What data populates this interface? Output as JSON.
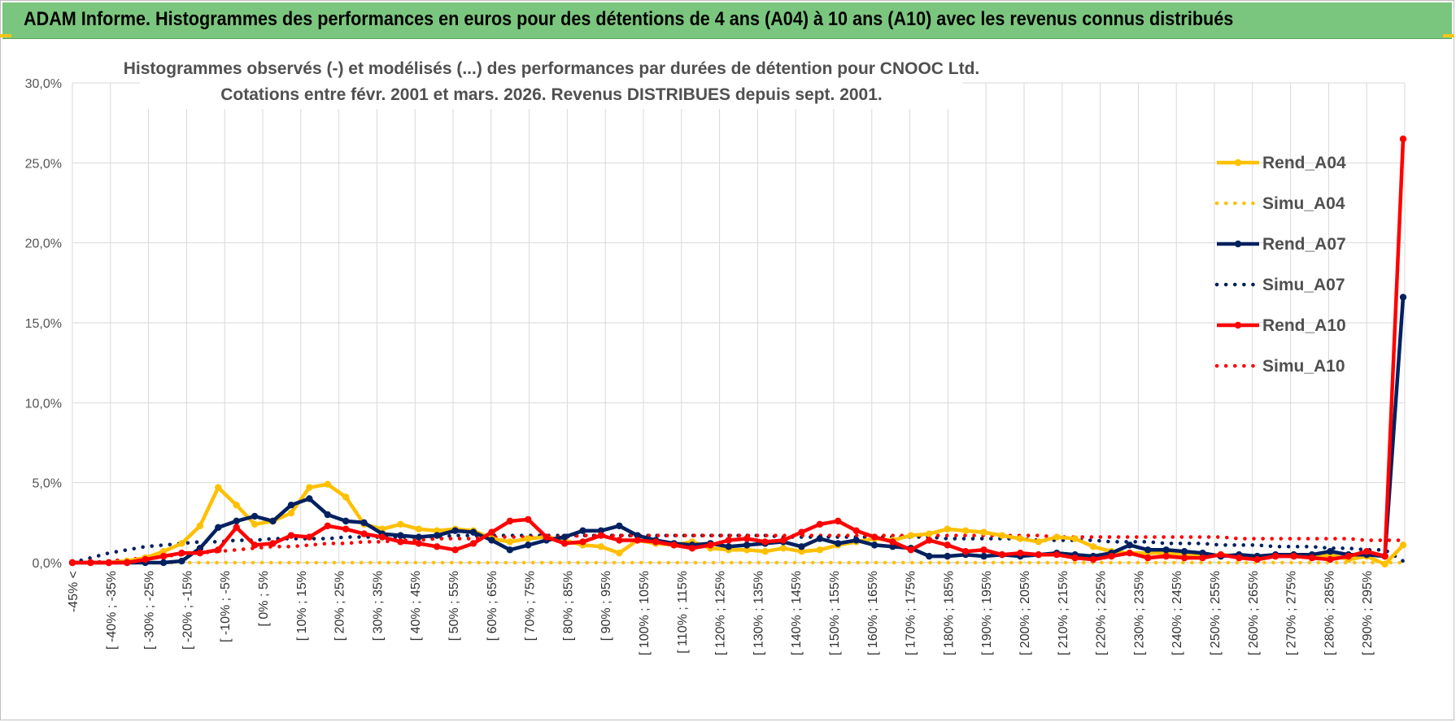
{
  "header": {
    "title": "ADAM Informe. Histogrammes des performances en euros pour des détentions de 4 ans (A04) à 10 ans (A10) avec les revenus connus distribués"
  },
  "chart_data": {
    "type": "line",
    "title": "Histogrammes observés (-) et modélisés (...) des performances par durées de détention pour CNOOC Ltd.",
    "subtitle": "Cotations entre févr. 2001 et mars. 2026. Revenus DISTRIBUES depuis sept. 2001.",
    "xlabel": "",
    "ylabel": "",
    "ylim": [
      0,
      30
    ],
    "y_ticks": [
      "0,0%",
      "5,0%",
      "10,0%",
      "15,0%",
      "20,0%",
      "25,0%",
      "30,0%"
    ],
    "grid": true,
    "legend_position": "right",
    "x_tick_labels": [
      "-45% <",
      "[ -40% ; -35%",
      "[ -30% ; -25%",
      "[ -20% ; -15%",
      "[ -10% ; -5%",
      "[ 0% ; 5%",
      "[ 10% ; 15%",
      "[ 20% ; 25%",
      "[ 30% ; 35%",
      "[ 40% ; 45%",
      "[ 50% ; 55%",
      "[ 60% ; 65%",
      "[ 70% ; 75%",
      "[ 80% ; 85%",
      "[ 90% ; 95%",
      "[ 100% ; 105%",
      "[ 110% ; 115%",
      "[ 120% ; 125%",
      "[ 130% ; 135%",
      "[ 140% ; 145%",
      "[ 150% ; 155%",
      "[ 160% ; 165%",
      "[ 170% ; 175%",
      "[ 180% ; 185%",
      "[ 190% ; 195%",
      "[ 200% ; 205%",
      "[ 210% ; 215%",
      "[ 220% ; 225%",
      "[ 230% ; 235%",
      "[ 240% ; 245%",
      "[ 250% ; 255%",
      "[ 260% ; 265%",
      "[ 270% ; 275%",
      "[ 280% ; 285%",
      "[ 290% ; 295%"
    ],
    "series": [
      {
        "name": "Rend_A04",
        "color": "#ffc000",
        "style": "solid",
        "markers": true,
        "values": [
          0,
          0,
          0,
          0.1,
          0.3,
          0.7,
          1.2,
          2.3,
          4.7,
          3.6,
          2.4,
          2.6,
          3.1,
          4.7,
          4.9,
          4.1,
          2.4,
          2.1,
          2.4,
          2.1,
          2.0,
          2.1,
          2.0,
          1.5,
          1.3,
          1.5,
          1.6,
          1.4,
          1.1,
          1.0,
          0.6,
          1.4,
          1.2,
          1.1,
          1.3,
          0.9,
          0.8,
          0.8,
          0.7,
          0.9,
          0.7,
          0.8,
          1.1,
          1.3,
          1.5,
          1.4,
          1.7,
          1.8,
          2.1,
          2.0,
          1.9,
          1.7,
          1.5,
          1.3,
          1.6,
          1.5,
          1.0,
          0.7,
          0.6,
          0.6,
          0.6,
          0.5,
          0.4,
          0.5,
          0.4,
          0.3,
          0.4,
          0.5,
          0.3,
          0.5,
          0.2,
          0.4,
          -0.1,
          1.1
        ]
      },
      {
        "name": "Simu_A04",
        "color": "#ffc000",
        "style": "dotted",
        "markers": false,
        "values": [
          0,
          0,
          0,
          0,
          0,
          0,
          0,
          0,
          0,
          0,
          0,
          0,
          0,
          0,
          0,
          0,
          0,
          0,
          0,
          0,
          0,
          0,
          0,
          0,
          0,
          0,
          0,
          0,
          0,
          0,
          0,
          0,
          0,
          0,
          0,
          0,
          0,
          0,
          0,
          0,
          0,
          0,
          0,
          0,
          0,
          0,
          0,
          0,
          0,
          0,
          0,
          0,
          0,
          0,
          0,
          0,
          0,
          0,
          0,
          0,
          0,
          0,
          0,
          0,
          0,
          0,
          0,
          0,
          0,
          0,
          0,
          0,
          0,
          0
        ]
      },
      {
        "name": "Rend_A07",
        "color": "#002060",
        "style": "solid",
        "markers": true,
        "values": [
          0,
          0,
          0,
          0,
          0,
          0,
          0.1,
          0.9,
          2.2,
          2.6,
          2.9,
          2.6,
          3.6,
          4.0,
          3.0,
          2.6,
          2.5,
          1.8,
          1.7,
          1.6,
          1.7,
          2.0,
          1.9,
          1.4,
          0.8,
          1.1,
          1.4,
          1.6,
          2.0,
          2.0,
          2.3,
          1.7,
          1.4,
          1.2,
          1.1,
          1.2,
          1.0,
          1.1,
          1.2,
          1.3,
          1.0,
          1.5,
          1.2,
          1.4,
          1.1,
          1.0,
          0.9,
          0.4,
          0.4,
          0.5,
          0.4,
          0.5,
          0.4,
          0.5,
          0.6,
          0.5,
          0.4,
          0.6,
          1.1,
          0.8,
          0.8,
          0.7,
          0.6,
          0.4,
          0.5,
          0.4,
          0.5,
          0.5,
          0.5,
          0.7,
          0.5,
          0.5,
          0.4,
          16.6
        ]
      },
      {
        "name": "Simu_A07",
        "color": "#002060",
        "style": "dotted",
        "markers": false,
        "values": [
          0,
          0.3,
          0.6,
          0.8,
          1.0,
          1.1,
          1.2,
          1.3,
          1.3,
          1.4,
          1.4,
          1.5,
          1.5,
          1.5,
          1.5,
          1.6,
          1.6,
          1.6,
          1.6,
          1.6,
          1.6,
          1.7,
          1.7,
          1.7,
          1.7,
          1.7,
          1.7,
          1.7,
          1.7,
          1.7,
          1.7,
          1.7,
          1.7,
          1.7,
          1.7,
          1.7,
          1.7,
          1.7,
          1.7,
          1.6,
          1.6,
          1.6,
          1.6,
          1.6,
          1.6,
          1.6,
          1.6,
          1.6,
          1.5,
          1.5,
          1.5,
          1.5,
          1.5,
          1.4,
          1.4,
          1.4,
          1.4,
          1.3,
          1.3,
          1.3,
          1.2,
          1.2,
          1.2,
          1.1,
          1.1,
          1.1,
          1.0,
          1.0,
          1.0,
          0.9,
          0.9,
          0.8,
          0.8,
          0.1
        ]
      },
      {
        "name": "Rend_A10",
        "color": "#ff0000",
        "style": "solid",
        "markers": true,
        "values": [
          0,
          0,
          0,
          0,
          0.2,
          0.4,
          0.6,
          0.6,
          0.8,
          2.2,
          1.1,
          1.2,
          1.7,
          1.6,
          2.3,
          2.1,
          1.8,
          1.6,
          1.3,
          1.2,
          1.0,
          0.8,
          1.2,
          1.9,
          2.6,
          2.7,
          1.6,
          1.2,
          1.3,
          1.7,
          1.4,
          1.4,
          1.3,
          1.1,
          0.9,
          1.1,
          1.4,
          1.5,
          1.3,
          1.4,
          1.9,
          2.4,
          2.6,
          2.0,
          1.6,
          1.3,
          0.8,
          1.4,
          1.1,
          0.7,
          0.8,
          0.5,
          0.6,
          0.5,
          0.5,
          0.3,
          0.2,
          0.4,
          0.6,
          0.3,
          0.4,
          0.3,
          0.3,
          0.5,
          0.3,
          0.2,
          0.4,
          0.4,
          0.3,
          0.2,
          0.4,
          0.7,
          0.4,
          26.5
        ]
      },
      {
        "name": "Simu_A10",
        "color": "#ff0000",
        "style": "dotted",
        "markers": false,
        "values": [
          0,
          0,
          0.1,
          0.2,
          0.3,
          0.4,
          0.5,
          0.6,
          0.7,
          0.8,
          0.9,
          1.0,
          1.0,
          1.1,
          1.2,
          1.2,
          1.3,
          1.3,
          1.4,
          1.4,
          1.5,
          1.5,
          1.5,
          1.6,
          1.6,
          1.6,
          1.6,
          1.6,
          1.7,
          1.7,
          1.7,
          1.7,
          1.7,
          1.7,
          1.7,
          1.7,
          1.7,
          1.7,
          1.7,
          1.7,
          1.7,
          1.7,
          1.7,
          1.7,
          1.7,
          1.7,
          1.7,
          1.7,
          1.7,
          1.7,
          1.7,
          1.7,
          1.7,
          1.7,
          1.6,
          1.6,
          1.6,
          1.6,
          1.6,
          1.6,
          1.6,
          1.6,
          1.6,
          1.6,
          1.5,
          1.5,
          1.5,
          1.5,
          1.5,
          1.5,
          1.5,
          1.4,
          1.4,
          1.4
        ]
      }
    ]
  }
}
